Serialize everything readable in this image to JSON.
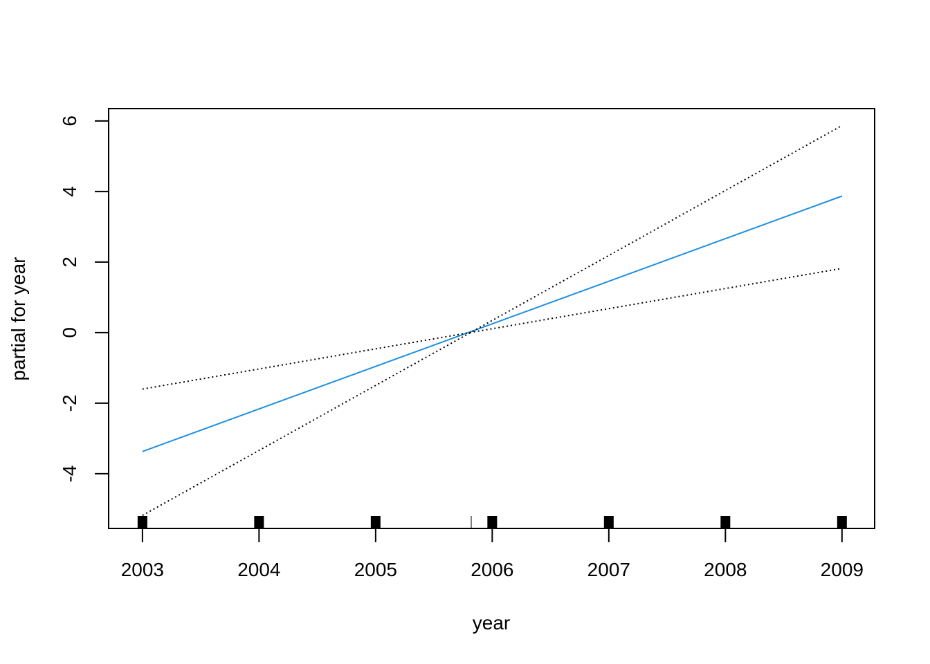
{
  "chart_data": {
    "type": "line",
    "title": "",
    "xlabel": "year",
    "ylabel": "partial for year",
    "xlim": [
      2002.71,
      2009.28
    ],
    "ylim": [
      -5.55,
      6.35
    ],
    "x_ticks": [
      2003,
      2004,
      2005,
      2006,
      2007,
      2008,
      2009
    ],
    "x_tick_labels": [
      "2003",
      "2004",
      "2005",
      "2006",
      "2007",
      "2008",
      "2009"
    ],
    "y_ticks": [
      -4,
      -2,
      0,
      2,
      4,
      6
    ],
    "y_tick_labels": [
      "-4",
      "-2",
      "0",
      "2",
      "4",
      "6"
    ],
    "grid": false,
    "legend": "none",
    "series": [
      {
        "role": "fit",
        "color": "#1f8fe0",
        "style": "solid",
        "x": [
          2003,
          2009
        ],
        "y": [
          -3.37,
          3.87
        ]
      },
      {
        "role": "upper-band",
        "color": "#000000",
        "style": "dotted",
        "x": [
          2003,
          2009
        ],
        "y": [
          -5.18,
          5.87
        ]
      },
      {
        "role": "lower-band",
        "color": "#000000",
        "style": "dotted",
        "x": [
          2003,
          2009
        ],
        "y": [
          -1.6,
          1.82
        ]
      }
    ],
    "rug": {
      "color": "#000000",
      "positions": [
        2003,
        2004,
        2005,
        2005.82,
        2006,
        2007,
        2008,
        2009
      ],
      "weights": [
        1,
        1,
        1,
        0,
        1,
        1,
        1,
        1
      ]
    }
  }
}
